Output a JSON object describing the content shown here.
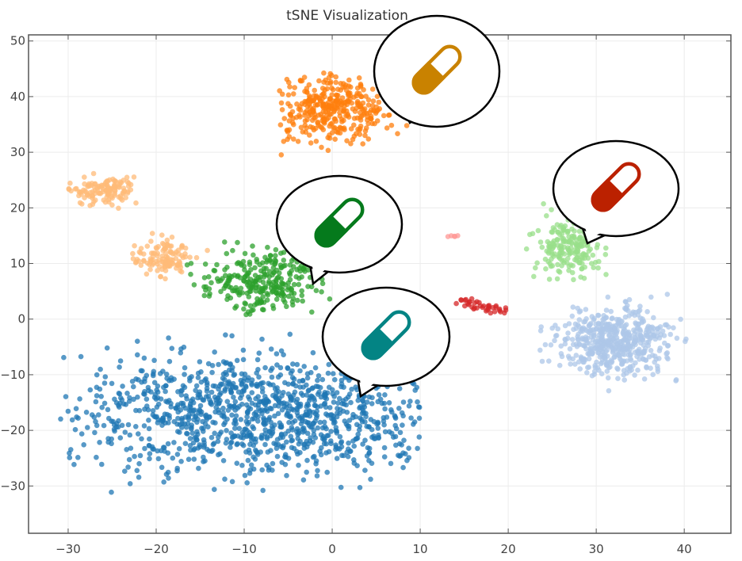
{
  "chart_data": {
    "type": "scatter",
    "title": "tSNE Visualization",
    "xlabel": "",
    "ylabel": "",
    "xlim": [
      -34.5,
      45.3
    ],
    "ylim": [
      -38.5,
      51.1
    ],
    "xticks": [
      -30,
      -20,
      -10,
      0,
      10,
      20,
      30,
      40
    ],
    "yticks": [
      -30,
      -20,
      -10,
      0,
      10,
      20,
      30,
      40,
      50
    ],
    "xtick_labels": [
      "−30",
      "−20",
      "−10",
      "0",
      "10",
      "20",
      "30",
      "40"
    ],
    "ytick_labels": [
      "−30",
      "−20",
      "−10",
      "0",
      "10",
      "20",
      "30",
      "40",
      "50"
    ],
    "grid": true,
    "legend": "none",
    "series": [
      {
        "name": "cluster-blue",
        "color": "#1f77b4",
        "approx_points": 1500,
        "center": [
          -7,
          -17
        ],
        "spread": [
          18,
          8
        ],
        "x_range": [
          -31,
          10
        ],
        "y_range": [
          -34,
          -2
        ]
      },
      {
        "name": "cluster-orange",
        "color": "#ff7f0e",
        "approx_points": 420,
        "center": [
          0,
          37.5
        ],
        "spread": [
          4.8,
          4.5
        ],
        "x_range": [
          -6,
          9
        ],
        "y_range": [
          28,
          46
        ]
      },
      {
        "name": "cluster-light-orange-top",
        "color": "#ffbb78",
        "approx_points": 150,
        "center": [
          -26,
          23
        ],
        "spread": [
          2.6,
          2
        ],
        "x_range": [
          -30,
          -22
        ],
        "y_range": [
          19,
          27
        ]
      },
      {
        "name": "cluster-light-orange-mid",
        "color": "#ffbb78",
        "approx_points": 140,
        "center": [
          -19,
          11
        ],
        "spread": [
          2.6,
          2.2
        ],
        "x_range": [
          -23,
          -14
        ],
        "y_range": [
          5,
          16
        ]
      },
      {
        "name": "cluster-green",
        "color": "#2ca02c",
        "approx_points": 330,
        "center": [
          -8,
          7
        ],
        "spread": [
          5,
          3.8
        ],
        "x_range": [
          -17,
          0
        ],
        "y_range": [
          0,
          17
        ]
      },
      {
        "name": "cluster-light-green",
        "color": "#98df8a",
        "approx_points": 230,
        "center": [
          27,
          13
        ],
        "spread": [
          3,
          4
        ],
        "x_range": [
          22,
          33
        ],
        "y_range": [
          5,
          21
        ]
      },
      {
        "name": "cluster-light-blue",
        "color": "#aec7e8",
        "approx_points": 620,
        "center": [
          32,
          -4
        ],
        "spread": [
          4.8,
          4.3
        ],
        "x_range": [
          23,
          41
        ],
        "y_range": [
          -14,
          7
        ]
      },
      {
        "name": "cluster-red",
        "color": "#d62728",
        "approx_points": 45,
        "center": [
          17,
          2
        ],
        "spread": [
          2,
          0.6
        ],
        "x_range": [
          14,
          22
        ],
        "y_range": [
          0.5,
          3.8
        ]
      },
      {
        "name": "cluster-pink",
        "color": "#ff9896",
        "approx_points": 6,
        "center": [
          13.5,
          15
        ],
        "spread": [
          0.6,
          0.1
        ],
        "x_range": [
          12.8,
          14.3
        ],
        "y_range": [
          14.8,
          15.2
        ]
      }
    ],
    "annotations": [
      {
        "name": "pill-callout-orange",
        "pill_color": "#c98200",
        "points_to": "cluster-orange"
      },
      {
        "name": "pill-callout-red",
        "pill_color": "#bb2100",
        "points_to": "cluster-light-green"
      },
      {
        "name": "pill-callout-green",
        "pill_color": "#057a1c",
        "points_to": "cluster-green"
      },
      {
        "name": "pill-callout-teal",
        "pill_color": "#038484",
        "points_to": "cluster-blue"
      }
    ]
  }
}
